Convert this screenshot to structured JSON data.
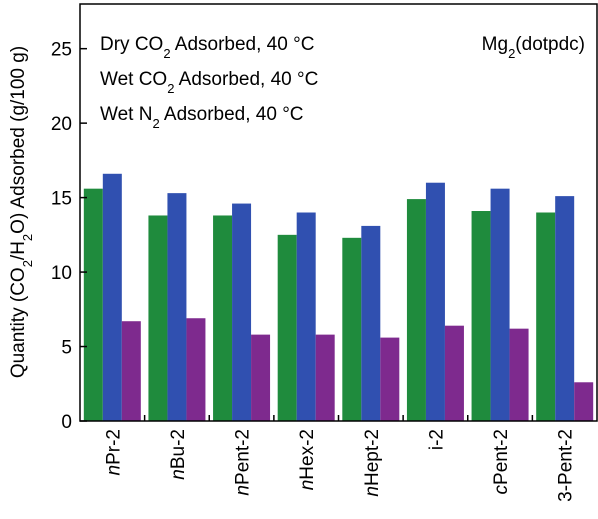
{
  "chart_data": {
    "type": "bar",
    "annotation": "Mg2(dotpdc)",
    "y_label": "Quantity (CO2/H2O) Adsorbed (g/100 g)",
    "categories": [
      "nPr-2",
      "nBu-2",
      "nPent-2",
      "nHex-2",
      "nHept-2",
      "i-2",
      "cPent-2",
      "3-Pent-2"
    ],
    "series": [
      {
        "name": "Dry CO2 Adsorbed, 40 °C",
        "color": "#1f8b3d",
        "values": [
          15.6,
          13.8,
          13.8,
          12.5,
          12.3,
          14.9,
          14.1,
          14.0
        ]
      },
      {
        "name": "Wet CO2 Adsorbed, 40 °C",
        "color": "#3050b0",
        "values": [
          16.6,
          15.3,
          14.6,
          14.0,
          13.1,
          16.0,
          15.6,
          15.1
        ]
      },
      {
        "name": "Wet N2 Adsorbed, 40 °C",
        "color": "#7e2a8e",
        "values": [
          6.7,
          6.9,
          5.8,
          5.8,
          5.6,
          6.4,
          6.2,
          2.6
        ]
      }
    ],
    "ylim": [
      0,
      28
    ],
    "yticks": [
      0,
      5,
      10,
      15,
      20,
      25
    ]
  }
}
